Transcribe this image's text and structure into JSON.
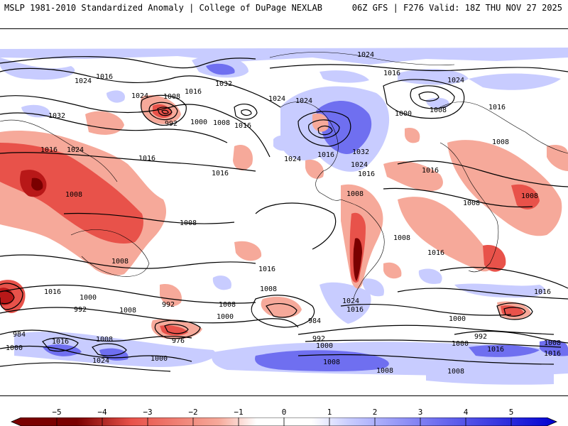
{
  "header": {
    "left_title": "MSLP 1981-2010 Standardized Anomaly | College of DuPage NEXLAB",
    "right_title": "06Z GFS | F276 Valid: 18Z THU NOV 27 2025"
  },
  "legend": {
    "type": "colorbar",
    "min": -5,
    "max": 5,
    "tick_labels": [
      "−5",
      "−4",
      "−3",
      "−2",
      "−1",
      "0",
      "1",
      "2",
      "3",
      "4",
      "5"
    ],
    "colors": {
      "negative_strong": "#7a0000",
      "negative": "#e8524a",
      "negative_light": "#f6a99a",
      "neutral": "#ffffff",
      "positive_light": "#c8ccff",
      "positive": "#6f6ff0",
      "positive_strong": "#0000d0"
    }
  },
  "contour_labels": [
    {
      "id": "1024-top",
      "text": "1024"
    },
    {
      "id": "1016-nw",
      "text": "1016"
    },
    {
      "id": "1024-asia",
      "text": "1024"
    },
    {
      "id": "1032-arctic",
      "text": "1032"
    },
    {
      "id": "1024-aleut",
      "text": "1024"
    },
    {
      "id": "1008-aleut",
      "text": "1008"
    },
    {
      "id": "1016-pac",
      "text": "1016"
    },
    {
      "id": "1032-asia",
      "text": "1032"
    },
    {
      "id": "992-pac",
      "text": "992"
    },
    {
      "id": "1000-pac",
      "text": "1000"
    },
    {
      "id": "1008-pac",
      "text": "1008"
    },
    {
      "id": "1016-pac2",
      "text": "1016"
    },
    {
      "id": "1024-can",
      "text": "1024"
    },
    {
      "id": "1024-can2",
      "text": "1024"
    },
    {
      "id": "1016-atl",
      "text": "1016"
    },
    {
      "id": "1000-atl",
      "text": "1000"
    },
    {
      "id": "1008-atl",
      "text": "1008"
    },
    {
      "id": "1024-eur",
      "text": "1024"
    },
    {
      "id": "1016-eur",
      "text": "1016"
    },
    {
      "id": "1016-asia2",
      "text": "1016"
    },
    {
      "id": "1024-asia2",
      "text": "1024"
    },
    {
      "id": "1016-pac3",
      "text": "1016"
    },
    {
      "id": "1016-pac4",
      "text": "1016"
    },
    {
      "id": "1024-us",
      "text": "1024"
    },
    {
      "id": "1016-us",
      "text": "1016"
    },
    {
      "id": "1032-us",
      "text": "1032"
    },
    {
      "id": "1024-us2",
      "text": "1024"
    },
    {
      "id": "1016-us2",
      "text": "1016"
    },
    {
      "id": "1016-atl2",
      "text": "1016"
    },
    {
      "id": "1008-afr",
      "text": "1008"
    },
    {
      "id": "1008-afr2",
      "text": "1008"
    },
    {
      "id": "1008-ind",
      "text": "1008"
    },
    {
      "id": "1008-io",
      "text": "1008"
    },
    {
      "id": "1008-sam",
      "text": "1008"
    },
    {
      "id": "1008-sam2",
      "text": "1008"
    },
    {
      "id": "1008-aus",
      "text": "1008"
    },
    {
      "id": "1016-sio",
      "text": "1016"
    },
    {
      "id": "1016-spac",
      "text": "1016"
    },
    {
      "id": "1016-satl",
      "text": "1016"
    },
    {
      "id": "1008-safr",
      "text": "1008"
    },
    {
      "id": "1016-safr",
      "text": "1016"
    },
    {
      "id": "1000-sio",
      "text": "1000"
    },
    {
      "id": "992-sio",
      "text": "992"
    },
    {
      "id": "1008-sio2",
      "text": "1008"
    },
    {
      "id": "992-tas",
      "text": "992"
    },
    {
      "id": "1000-spac",
      "text": "1000"
    },
    {
      "id": "1008-spac",
      "text": "1008"
    },
    {
      "id": "984-satl",
      "text": "984"
    },
    {
      "id": "992-satl",
      "text": "992"
    },
    {
      "id": "1024-sam",
      "text": "1024"
    },
    {
      "id": "1016-sam",
      "text": "1016"
    },
    {
      "id": "1008-sio3",
      "text": "1008"
    },
    {
      "id": "1000-sio3",
      "text": "1000"
    },
    {
      "id": "992-sio3",
      "text": "992"
    },
    {
      "id": "1000-sio4",
      "text": "1000"
    },
    {
      "id": "1016-sio4",
      "text": "1016"
    },
    {
      "id": "1008-far",
      "text": "1008"
    },
    {
      "id": "1016-far",
      "text": "1016"
    },
    {
      "id": "984-sw",
      "text": "984"
    },
    {
      "id": "1000-sw",
      "text": "1000"
    },
    {
      "id": "1016-sw",
      "text": "1016"
    },
    {
      "id": "1008-sw",
      "text": "1008"
    },
    {
      "id": "976-spac",
      "text": "976"
    },
    {
      "id": "1024-sw",
      "text": "1024"
    },
    {
      "id": "1000-spac2",
      "text": "1000"
    },
    {
      "id": "1000-ant",
      "text": "1000"
    },
    {
      "id": "1008-ant",
      "text": "1008"
    },
    {
      "id": "1008-ant2",
      "text": "1008"
    },
    {
      "id": "1008-ant3",
      "text": "1008"
    }
  ]
}
